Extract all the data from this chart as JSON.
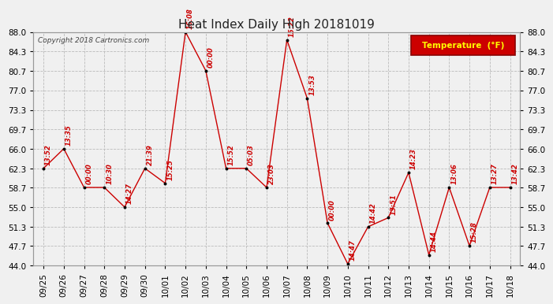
{
  "title": "Heat Index Daily High 20181019",
  "copyright": "Copyright 2018 Cartronics.com",
  "legend_label": "Temperature  (°F)",
  "legend_bg": "#cc0000",
  "legend_fg": "#ffff00",
  "ylim": [
    44.0,
    88.0
  ],
  "yticks": [
    44.0,
    47.7,
    51.3,
    55.0,
    58.7,
    62.3,
    66.0,
    69.7,
    73.3,
    77.0,
    80.7,
    84.3,
    88.0
  ],
  "dates": [
    "09/25",
    "09/26",
    "09/27",
    "09/28",
    "09/29",
    "09/30",
    "10/01",
    "10/02",
    "10/03",
    "10/04",
    "10/05",
    "10/06",
    "10/07",
    "10/08",
    "10/09",
    "10/10",
    "10/11",
    "10/12",
    "10/13",
    "10/14",
    "10/15",
    "10/16",
    "10/17",
    "10/18"
  ],
  "values": [
    62.3,
    66.0,
    58.7,
    58.7,
    55.0,
    62.3,
    59.5,
    88.0,
    80.7,
    62.3,
    62.3,
    58.7,
    86.5,
    75.5,
    52.0,
    44.3,
    51.3,
    53.0,
    61.5,
    46.0,
    58.7,
    47.7,
    58.7,
    58.7
  ],
  "labels": [
    "13:52",
    "13:35",
    "00:00",
    "10:30",
    "14:27",
    "21:39",
    "15:25",
    "16:08",
    "00:00",
    "15:52",
    "05:03",
    "23:03",
    "15:22",
    "13:53",
    "00:00",
    "14:47",
    "14:42",
    "13:51",
    "14:23",
    "14:44",
    "13:06",
    "15:28",
    "13:27",
    "13:42"
  ],
  "line_color": "#cc0000",
  "marker_color": "#000000",
  "label_color": "#cc0000",
  "bg_color": "#f0f0f0",
  "grid_color": "#bbbbbb"
}
